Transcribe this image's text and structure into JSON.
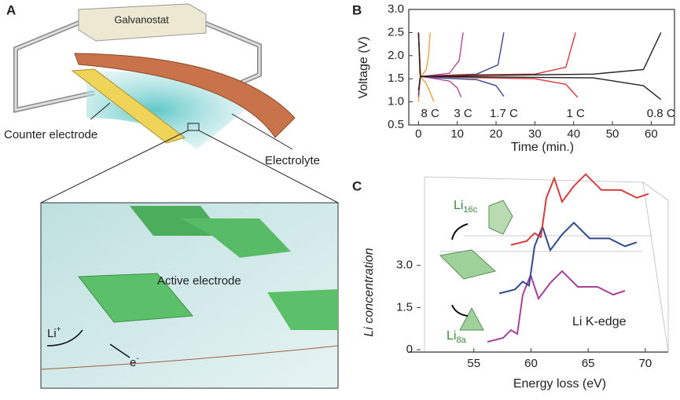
{
  "panel_a": {
    "label": "A",
    "galvanostat": "Galvanostat",
    "counter_electrode": "Counter electrode",
    "electrolyte": "Electrolyte",
    "active_electrode": "Active electrode",
    "ion": {
      "base": "Li",
      "sup": "+"
    },
    "electron": {
      "base": "e",
      "sup": "-"
    }
  },
  "chart_data": {
    "type": "line",
    "label": "B",
    "xlabel": "Time (min.)",
    "ylabel": "Voltage (V)",
    "xlim": [
      -2.5,
      66
    ],
    "ylim": [
      0.5,
      3.0
    ],
    "xticks": [
      0,
      10,
      20,
      30,
      40,
      50,
      60
    ],
    "yticks": [
      0.5,
      {
        "value": 1,
        "label": "1.0"
      },
      1.5,
      {
        "value": 2,
        "label": "2.0"
      },
      2.5,
      {
        "value": 3,
        "label": "3.0"
      }
    ],
    "series": [
      {
        "name": "8 C",
        "color": "#e8a33a",
        "charge": {
          "x": [
            0,
            0.3,
            1,
            2,
            2.6,
            3.0
          ],
          "values": [
            1.0,
            1.5,
            1.58,
            1.7,
            2.0,
            2.5
          ]
        },
        "discharge": {
          "x": [
            0,
            0.3,
            1,
            2,
            3,
            4
          ],
          "values": [
            2.5,
            1.6,
            1.5,
            1.4,
            1.2,
            1.0
          ]
        }
      },
      {
        "name": "3 C",
        "color": "#b5469f",
        "charge": {
          "x": [
            0,
            0.5,
            3,
            8,
            10.5,
            11.5
          ],
          "values": [
            1.1,
            1.55,
            1.57,
            1.62,
            1.9,
            2.5
          ]
        },
        "discharge": {
          "x": [
            0,
            0.5,
            3,
            8,
            10,
            11
          ],
          "values": [
            2.5,
            1.55,
            1.52,
            1.45,
            1.3,
            1.1
          ]
        }
      },
      {
        "name": "1.7 C",
        "color": "#3a4a8f",
        "charge": {
          "x": [
            0,
            0.5,
            5,
            15,
            20.5,
            22
          ],
          "values": [
            1.15,
            1.55,
            1.57,
            1.6,
            1.8,
            2.5
          ]
        },
        "discharge": {
          "x": [
            0,
            0.5,
            5,
            15,
            20,
            22
          ],
          "values": [
            2.5,
            1.55,
            1.52,
            1.48,
            1.35,
            1.12
          ]
        }
      },
      {
        "name": "1 C",
        "color": "#d63a3a",
        "charge": {
          "x": [
            0,
            0.5,
            10,
            30,
            38,
            40.5
          ],
          "values": [
            1.2,
            1.55,
            1.58,
            1.6,
            1.75,
            2.5
          ]
        },
        "discharge": {
          "x": [
            0,
            0.5,
            10,
            30,
            38,
            41
          ],
          "values": [
            2.5,
            1.55,
            1.53,
            1.5,
            1.38,
            1.1
          ]
        }
      },
      {
        "name": "0.8 C",
        "color": "#222222",
        "charge": {
          "x": [
            0,
            0.5,
            15,
            45,
            58,
            62.5
          ],
          "values": [
            1.25,
            1.55,
            1.57,
            1.6,
            1.7,
            2.5
          ]
        },
        "discharge": {
          "x": [
            0,
            0.5,
            15,
            45,
            58,
            62.5
          ],
          "values": [
            2.5,
            1.55,
            1.54,
            1.52,
            1.35,
            1.05
          ]
        }
      }
    ]
  },
  "panel_c": {
    "label": "C",
    "xlabel": "Energy loss (eV)",
    "ylabel": "Li concentration",
    "annotation": "Li K-edge",
    "site_16c": {
      "base": "Li",
      "sub": "16c"
    },
    "site_8a": {
      "base": "Li",
      "sub": "8a"
    },
    "xlim": [
      50,
      72
    ],
    "xticks": [
      55,
      60,
      65,
      70
    ],
    "ylim": [
      0,
      3.3
    ],
    "yticks": [
      0,
      1.5,
      {
        "value": 3,
        "label": "3.0"
      }
    ]
  }
}
